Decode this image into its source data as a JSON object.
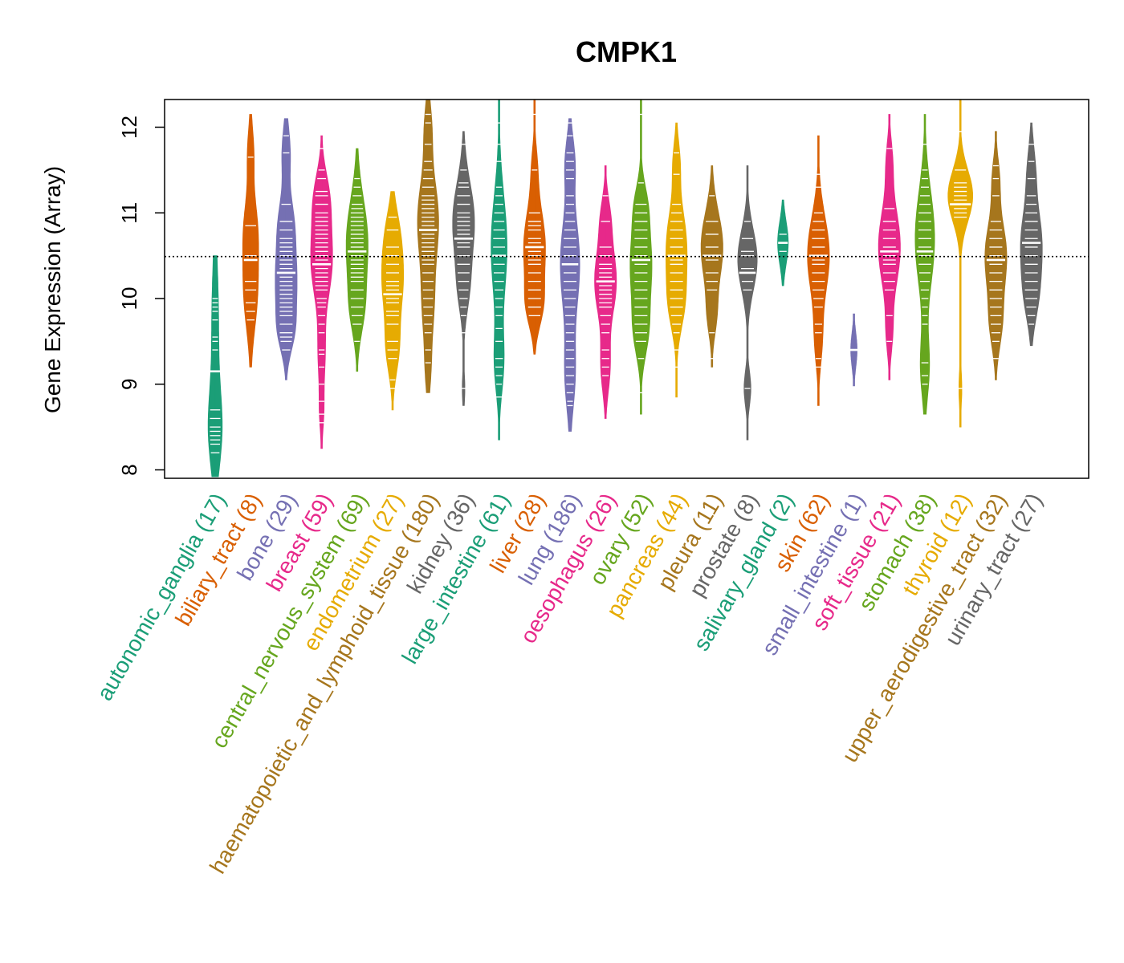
{
  "chart_data": {
    "type": "violin",
    "title": "CMPK1",
    "ylabel": "Gene Expression (Array)",
    "ylim": [
      7.9,
      12.33
    ],
    "yticks": [
      8,
      9,
      10,
      11,
      12
    ],
    "reference_line": 10.49,
    "categories": [
      {
        "label": "autonomic_ganglia (17)",
        "color": "#1b9e77",
        "median": 9.15,
        "min": 7.92,
        "max": 10.5,
        "width": 0.4,
        "modes": [
          [
            9.7,
            0.75,
            0.55
          ],
          [
            8.45,
            0.45,
            1.0
          ]
        ],
        "points": [
          10.0,
          9.95,
          9.9,
          9.85,
          9.75,
          9.55,
          9.5,
          9.4,
          9.15,
          8.7,
          8.6,
          8.5,
          8.45,
          8.4,
          8.35,
          8.3,
          8.2
        ]
      },
      {
        "label": "biliary_tract (8)",
        "color": "#d95f02",
        "median": 10.45,
        "min": 9.2,
        "max": 12.15,
        "width": 0.45,
        "modes": [
          [
            10.1,
            0.45,
            1.0
          ],
          [
            10.85,
            0.35,
            0.8
          ],
          [
            11.7,
            0.3,
            0.45
          ]
        ],
        "points": [
          11.65,
          10.85,
          10.5,
          10.2,
          10.1,
          9.95,
          9.85,
          9.75
        ]
      },
      {
        "label": "bone (29)",
        "color": "#7570b3",
        "median": 10.3,
        "min": 9.05,
        "max": 12.1,
        "width": 0.62,
        "modes": [
          [
            10.2,
            0.4,
            1.0
          ],
          [
            10.9,
            0.3,
            0.6
          ],
          [
            11.7,
            0.3,
            0.4
          ],
          [
            9.6,
            0.25,
            0.55
          ]
        ],
        "points": [
          11.9,
          11.7,
          11.1,
          10.9,
          10.8,
          10.7,
          10.6,
          10.5,
          10.45,
          10.4,
          10.35,
          10.3,
          10.25,
          10.2,
          10.15,
          10.1,
          10.05,
          10.0,
          9.95,
          9.9,
          9.85,
          9.8,
          9.7,
          9.6,
          9.55,
          9.5,
          9.4,
          10.55,
          10.65
        ]
      },
      {
        "label": "breast (59)",
        "color": "#e7298a",
        "median": 10.4,
        "min": 8.25,
        "max": 11.9,
        "width": 0.62,
        "modes": [
          [
            10.45,
            0.45,
            1.0
          ],
          [
            11.2,
            0.3,
            0.55
          ],
          [
            9.35,
            0.3,
            0.3
          ],
          [
            8.7,
            0.25,
            0.2
          ]
        ],
        "points": [
          11.75,
          11.5,
          11.4,
          11.25,
          11.2,
          11.1,
          11.0,
          10.95,
          10.9,
          10.85,
          10.8,
          10.75,
          10.7,
          10.65,
          10.6,
          10.55,
          10.5,
          10.45,
          10.4,
          10.35,
          10.3,
          10.25,
          10.2,
          10.15,
          10.1,
          10.0,
          9.95,
          9.9,
          9.8,
          9.7,
          9.6,
          9.4,
          9.35,
          9.2,
          9.0,
          8.8,
          8.65,
          8.55
        ]
      },
      {
        "label": "central_nervous_system (69)",
        "color": "#66a61e",
        "median": 10.55,
        "min": 9.15,
        "max": 11.75,
        "width": 0.62,
        "modes": [
          [
            10.65,
            0.5,
            1.0
          ],
          [
            9.85,
            0.3,
            0.45
          ]
        ],
        "points": [
          11.4,
          11.3,
          11.2,
          11.1,
          11.05,
          11.0,
          10.95,
          10.9,
          10.85,
          10.8,
          10.75,
          10.7,
          10.65,
          10.6,
          10.55,
          10.5,
          10.45,
          10.4,
          10.35,
          10.3,
          10.25,
          10.2,
          10.1,
          10.0,
          9.9,
          9.8,
          9.7,
          9.5
        ]
      },
      {
        "label": "endometrium (27)",
        "color": "#e6ab02",
        "median": 10.05,
        "min": 8.7,
        "max": 11.25,
        "width": 0.62,
        "modes": [
          [
            10.2,
            0.4,
            1.0
          ],
          [
            9.4,
            0.3,
            0.55
          ],
          [
            10.8,
            0.3,
            0.45
          ]
        ],
        "points": [
          10.95,
          10.8,
          10.6,
          10.5,
          10.4,
          10.3,
          10.2,
          10.15,
          10.1,
          10.05,
          10.0,
          9.95,
          9.85,
          9.8,
          9.7,
          9.5,
          9.4,
          9.3,
          9.05,
          8.95
        ]
      },
      {
        "label": "haematopoietic_and_lymphoid_tissue (180)",
        "color": "#a6761d",
        "median": 10.8,
        "min": 8.9,
        "max": 12.33,
        "width": 0.6,
        "modes": [
          [
            10.9,
            0.5,
            1.0
          ],
          [
            9.9,
            0.35,
            0.45
          ],
          [
            9.2,
            0.3,
            0.25
          ],
          [
            12.0,
            0.3,
            0.3
          ]
        ],
        "points": [
          12.15,
          12.05,
          11.8,
          11.6,
          11.5,
          11.4,
          11.3,
          11.2,
          11.15,
          11.1,
          11.05,
          11.0,
          10.95,
          10.9,
          10.85,
          10.8,
          10.75,
          10.7,
          10.65,
          10.6,
          10.55,
          10.5,
          10.45,
          10.4,
          10.3,
          10.2,
          10.1,
          10.0,
          9.9,
          9.8,
          9.7,
          9.6,
          9.4,
          9.25
        ]
      },
      {
        "label": "kidney (36)",
        "color": "#666666",
        "median": 10.7,
        "min": 8.75,
        "max": 11.95,
        "width": 0.62,
        "modes": [
          [
            10.9,
            0.45,
            1.0
          ],
          [
            10.1,
            0.3,
            0.4
          ],
          [
            8.95,
            0.18,
            0.12
          ]
        ],
        "points": [
          11.8,
          11.5,
          11.35,
          11.3,
          11.2,
          11.1,
          11.0,
          10.95,
          10.9,
          10.85,
          10.8,
          10.75,
          10.7,
          10.65,
          10.6,
          10.5,
          10.4,
          10.3,
          10.2,
          10.1,
          10.0,
          9.9,
          9.8,
          9.6,
          8.95
        ]
      },
      {
        "label": "large_intestine (61)",
        "color": "#1b9e77",
        "median": 10.5,
        "min": 8.35,
        "max": 12.33,
        "width": 0.45,
        "modes": [
          [
            10.6,
            0.6,
            1.0
          ],
          [
            9.25,
            0.35,
            0.55
          ]
        ],
        "points": [
          12.05,
          11.8,
          11.6,
          11.3,
          11.2,
          11.1,
          11.0,
          10.9,
          10.8,
          10.7,
          10.6,
          10.5,
          10.4,
          10.3,
          10.2,
          10.1,
          10.0,
          9.9,
          9.8,
          9.65,
          9.5,
          9.3,
          9.2,
          9.1,
          9.0,
          8.85
        ]
      },
      {
        "label": "liver (28)",
        "color": "#d95f02",
        "median": 10.6,
        "min": 9.35,
        "max": 12.33,
        "width": 0.62,
        "modes": [
          [
            10.6,
            0.45,
            1.0
          ],
          [
            9.9,
            0.25,
            0.55
          ],
          [
            11.55,
            0.25,
            0.2
          ]
        ],
        "points": [
          12.15,
          11.5,
          11.0,
          10.9,
          10.85,
          10.8,
          10.7,
          10.65,
          10.6,
          10.55,
          10.5,
          10.45,
          10.4,
          10.3,
          10.2,
          10.1,
          10.0,
          9.9,
          9.8
        ]
      },
      {
        "label": "lung (186)",
        "color": "#7570b3",
        "median": 10.4,
        "min": 8.45,
        "max": 12.1,
        "width": 0.55,
        "modes": [
          [
            10.4,
            0.55,
            1.0
          ],
          [
            11.6,
            0.3,
            0.45
          ],
          [
            9.1,
            0.4,
            0.5
          ]
        ],
        "points": [
          12.05,
          11.9,
          11.7,
          11.6,
          11.5,
          11.4,
          11.2,
          11.1,
          11.0,
          10.9,
          10.8,
          10.7,
          10.6,
          10.5,
          10.4,
          10.3,
          10.2,
          10.1,
          10.0,
          9.9,
          9.8,
          9.7,
          9.6,
          9.5,
          9.4,
          9.3,
          9.2,
          9.1,
          9.0,
          8.9,
          8.8,
          8.75
        ]
      },
      {
        "label": "oesophagus (26)",
        "color": "#e7298a",
        "median": 10.2,
        "min": 8.6,
        "max": 11.55,
        "width": 0.62,
        "modes": [
          [
            10.2,
            0.4,
            1.0
          ],
          [
            9.2,
            0.3,
            0.4
          ],
          [
            10.95,
            0.25,
            0.35
          ]
        ],
        "points": [
          11.2,
          10.9,
          10.6,
          10.5,
          10.4,
          10.35,
          10.3,
          10.25,
          10.2,
          10.15,
          10.1,
          10.05,
          10.0,
          9.95,
          9.9,
          9.8,
          9.7,
          9.6,
          9.4,
          9.3,
          9.2,
          9.1
        ]
      },
      {
        "label": "ovary (52)",
        "color": "#66a61e",
        "median": 10.45,
        "min": 8.65,
        "max": 12.33,
        "width": 0.62,
        "modes": [
          [
            10.4,
            0.45,
            1.0
          ],
          [
            9.6,
            0.3,
            0.55
          ],
          [
            11.1,
            0.25,
            0.4
          ]
        ],
        "points": [
          12.15,
          11.35,
          11.1,
          11.0,
          10.9,
          10.8,
          10.7,
          10.6,
          10.5,
          10.45,
          10.4,
          10.3,
          10.2,
          10.1,
          10.0,
          9.9,
          9.8,
          9.7,
          9.6,
          9.5,
          9.3,
          8.9
        ]
      },
      {
        "label": "pancreas (44)",
        "color": "#e6ab02",
        "median": 10.5,
        "min": 8.85,
        "max": 12.05,
        "width": 0.6,
        "modes": [
          [
            10.6,
            0.45,
            1.0
          ],
          [
            9.9,
            0.3,
            0.55
          ],
          [
            11.6,
            0.25,
            0.3
          ]
        ],
        "points": [
          11.7,
          11.45,
          11.1,
          11.0,
          10.9,
          10.8,
          10.7,
          10.6,
          10.5,
          10.45,
          10.4,
          10.3,
          10.2,
          10.1,
          10.0,
          9.9,
          9.8,
          9.7,
          9.6,
          9.4,
          9.2
        ]
      },
      {
        "label": "pleura (11)",
        "color": "#a6761d",
        "median": 10.5,
        "min": 9.2,
        "max": 11.55,
        "width": 0.62,
        "modes": [
          [
            10.6,
            0.4,
            1.0
          ],
          [
            9.8,
            0.25,
            0.35
          ]
        ],
        "points": [
          11.2,
          10.9,
          10.75,
          10.6,
          10.5,
          10.45,
          10.3,
          10.2,
          10.1,
          9.6,
          9.3
        ]
      },
      {
        "label": "prostate (8)",
        "color": "#666666",
        "median": 10.3,
        "min": 8.35,
        "max": 11.55,
        "width": 0.55,
        "modes": [
          [
            10.45,
            0.35,
            1.0
          ],
          [
            8.95,
            0.2,
            0.35
          ]
        ],
        "points": [
          10.9,
          10.7,
          10.55,
          10.5,
          10.35,
          10.2,
          10.1,
          8.95
        ]
      },
      {
        "label": "salivary_gland (2)",
        "color": "#1b9e77",
        "median": 10.65,
        "min": 10.15,
        "max": 11.15,
        "width": 0.3,
        "modes": [
          [
            10.65,
            0.25,
            1.0
          ]
        ],
        "points": [
          10.75,
          10.55
        ]
      },
      {
        "label": "skin (62)",
        "color": "#d95f02",
        "median": 10.5,
        "min": 8.75,
        "max": 11.9,
        "width": 0.62,
        "modes": [
          [
            10.5,
            0.45,
            1.0
          ],
          [
            9.5,
            0.3,
            0.3
          ]
        ],
        "points": [
          11.45,
          11.3,
          11.0,
          10.9,
          10.8,
          10.7,
          10.6,
          10.5,
          10.45,
          10.4,
          10.3,
          10.2,
          10.1,
          10.0,
          9.9,
          9.7,
          9.6,
          9.3,
          9.2
        ]
      },
      {
        "label": "small_intestine (1)",
        "color": "#7570b3",
        "median": 9.4,
        "min": 8.98,
        "max": 9.82,
        "width": 0.18,
        "modes": [
          [
            9.4,
            0.2,
            1.0
          ]
        ],
        "points": [
          9.4
        ]
      },
      {
        "label": "soft_tissue (21)",
        "color": "#e7298a",
        "median": 10.55,
        "min": 9.05,
        "max": 12.15,
        "width": 0.62,
        "modes": [
          [
            10.6,
            0.45,
            1.0
          ],
          [
            11.6,
            0.25,
            0.25
          ],
          [
            9.6,
            0.25,
            0.25
          ]
        ],
        "points": [
          11.75,
          11.05,
          10.9,
          10.8,
          10.7,
          10.6,
          10.5,
          10.45,
          10.4,
          10.3,
          10.2,
          10.1,
          9.8,
          9.5
        ]
      },
      {
        "label": "stomach (38)",
        "color": "#66a61e",
        "median": 10.55,
        "min": 8.65,
        "max": 12.15,
        "width": 0.55,
        "modes": [
          [
            10.7,
            0.55,
            1.0
          ],
          [
            9.2,
            0.35,
            0.45
          ]
        ],
        "points": [
          11.8,
          11.5,
          11.4,
          11.3,
          11.2,
          11.1,
          11.0,
          10.9,
          10.8,
          10.7,
          10.6,
          10.5,
          10.4,
          10.3,
          10.2,
          10.1,
          10.0,
          9.9,
          9.8,
          9.7,
          9.25,
          9.1,
          9.0
        ]
      },
      {
        "label": "thyroid (12)",
        "color": "#e6ab02",
        "median": 11.1,
        "min": 8.5,
        "max": 12.33,
        "width": 0.7,
        "modes": [
          [
            11.2,
            0.3,
            1.0
          ],
          [
            8.95,
            0.2,
            0.12
          ]
        ],
        "points": [
          11.95,
          11.5,
          11.35,
          11.3,
          11.25,
          11.2,
          11.15,
          11.1,
          11.05,
          11.0,
          10.95,
          8.95
        ]
      },
      {
        "label": "upper_aerodigestive_tract (32)",
        "color": "#a6761d",
        "median": 10.45,
        "min": 9.05,
        "max": 11.95,
        "width": 0.62,
        "modes": [
          [
            10.5,
            0.4,
            1.0
          ],
          [
            9.7,
            0.3,
            0.5
          ],
          [
            11.4,
            0.25,
            0.3
          ]
        ],
        "points": [
          11.55,
          11.4,
          11.2,
          10.9,
          10.8,
          10.7,
          10.6,
          10.5,
          10.45,
          10.4,
          10.3,
          10.2,
          10.1,
          10.0,
          9.9,
          9.8,
          9.7,
          9.6,
          9.5,
          9.3
        ]
      },
      {
        "label": "urinary_tract (27)",
        "color": "#666666",
        "median": 10.65,
        "min": 9.45,
        "max": 12.05,
        "width": 0.62,
        "modes": [
          [
            10.65,
            0.4,
            1.0
          ],
          [
            10.0,
            0.3,
            0.5
          ],
          [
            11.5,
            0.3,
            0.35
          ]
        ],
        "points": [
          11.8,
          11.6,
          11.4,
          11.2,
          11.1,
          11.0,
          10.9,
          10.8,
          10.7,
          10.65,
          10.6,
          10.5,
          10.4,
          10.3,
          10.2,
          10.1,
          10.0,
          9.9,
          9.8,
          9.7
        ]
      }
    ]
  }
}
